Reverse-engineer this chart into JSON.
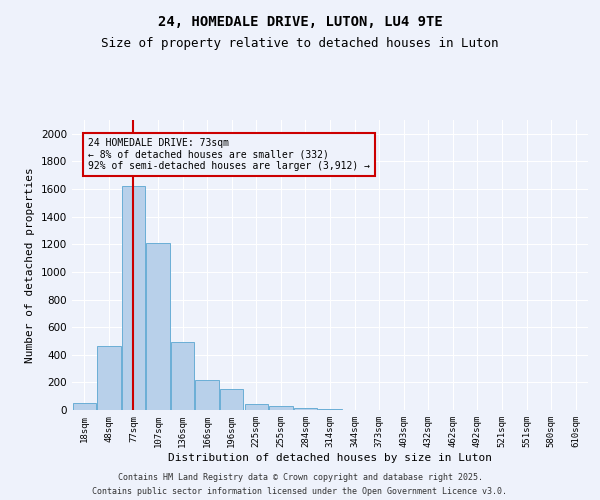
{
  "title": "24, HOMEDALE DRIVE, LUTON, LU4 9TE",
  "subtitle": "Size of property relative to detached houses in Luton",
  "xlabel": "Distribution of detached houses by size in Luton",
  "ylabel": "Number of detached properties",
  "categories": [
    "18sqm",
    "48sqm",
    "77sqm",
    "107sqm",
    "136sqm",
    "166sqm",
    "196sqm",
    "225sqm",
    "255sqm",
    "284sqm",
    "314sqm",
    "344sqm",
    "373sqm",
    "403sqm",
    "432sqm",
    "462sqm",
    "492sqm",
    "521sqm",
    "551sqm",
    "580sqm",
    "610sqm"
  ],
  "values": [
    50,
    460,
    1620,
    1210,
    490,
    220,
    155,
    40,
    30,
    15,
    8,
    3,
    2,
    1,
    0,
    0,
    0,
    0,
    0,
    0,
    0
  ],
  "bar_color": "#b8d0ea",
  "bar_edge_color": "#6aaed6",
  "red_line_index": 2,
  "annotation_text": "24 HOMEDALE DRIVE: 73sqm\n← 8% of detached houses are smaller (332)\n92% of semi-detached houses are larger (3,912) →",
  "annotation_box_color": "#cc0000",
  "ylim": [
    0,
    2100
  ],
  "yticks": [
    0,
    200,
    400,
    600,
    800,
    1000,
    1200,
    1400,
    1600,
    1800,
    2000
  ],
  "background_color": "#eef2fb",
  "grid_color": "#ffffff",
  "footer_line1": "Contains HM Land Registry data © Crown copyright and database right 2025.",
  "footer_line2": "Contains public sector information licensed under the Open Government Licence v3.0.",
  "title_fontsize": 10,
  "subtitle_fontsize": 9,
  "tick_fontsize": 6.5,
  "ylabel_fontsize": 8,
  "xlabel_fontsize": 8,
  "footer_fontsize": 6
}
